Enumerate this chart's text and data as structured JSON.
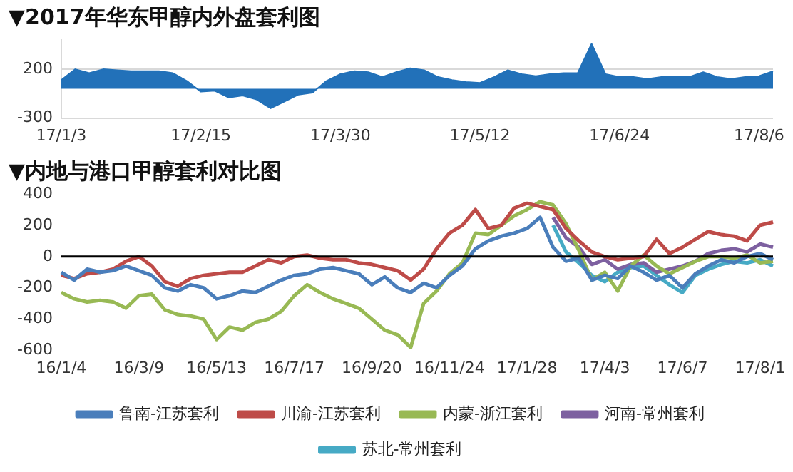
{
  "chart_data": [
    {
      "type": "area",
      "title": "▼2017年华东甲醇内外盘套利图",
      "categories": [
        "17/1/3",
        null,
        null,
        null,
        null,
        null,
        null,
        null,
        null,
        null,
        "17/2/15",
        null,
        null,
        null,
        null,
        null,
        null,
        null,
        null,
        null,
        "17/3/30",
        null,
        null,
        null,
        null,
        null,
        null,
        null,
        null,
        null,
        "17/5/12",
        null,
        null,
        null,
        null,
        null,
        null,
        null,
        null,
        null,
        "17/6/24",
        null,
        null,
        null,
        null,
        null,
        null,
        null,
        null,
        null,
        "17/8/6",
        null
      ],
      "series": [
        {
          "color": "#2271b9",
          "values": [
            90,
            200,
            160,
            200,
            190,
            180,
            180,
            180,
            160,
            80,
            -30,
            -20,
            -90,
            -70,
            -110,
            -200,
            -130,
            -60,
            -40,
            80,
            150,
            180,
            170,
            120,
            170,
            210,
            190,
            120,
            90,
            70,
            60,
            120,
            190,
            150,
            130,
            150,
            160,
            160,
            460,
            150,
            120,
            120,
            100,
            120,
            120,
            120,
            170,
            120,
            100,
            120,
            130,
            180
          ]
        }
      ],
      "ylim": [
        -300,
        500
      ],
      "yticks": [
        -300,
        200
      ],
      "grid": "y",
      "legend": false
    },
    {
      "type": "line",
      "title": "▼内地与港口甲醇套利对比图",
      "categories": [
        "16/1/4",
        null,
        null,
        null,
        null,
        null,
        "16/3/9",
        null,
        null,
        null,
        null,
        null,
        "16/5/13",
        null,
        null,
        null,
        null,
        null,
        "16/7/17",
        null,
        null,
        null,
        null,
        null,
        "16/9/20",
        null,
        null,
        null,
        null,
        null,
        "16/11/24",
        null,
        null,
        null,
        null,
        null,
        "17/1/28",
        null,
        null,
        null,
        null,
        null,
        "17/4/3",
        null,
        null,
        null,
        null,
        null,
        "17/6/7",
        null,
        null,
        null,
        null,
        null,
        "17/8/1",
        null
      ],
      "series": [
        {
          "name": "鲁南-江苏套利",
          "color": "#4a7ebb",
          "values": [
            -100,
            -150,
            -80,
            -100,
            -90,
            -60,
            -90,
            -120,
            -200,
            -220,
            -180,
            -200,
            -270,
            -250,
            -220,
            -230,
            -190,
            -150,
            -120,
            -110,
            -80,
            -70,
            -90,
            -110,
            -180,
            -130,
            -200,
            -230,
            -170,
            -200,
            -120,
            -60,
            50,
            100,
            130,
            150,
            180,
            250,
            60,
            -30,
            -10,
            -150,
            -120,
            -140,
            -60,
            -100,
            -150,
            -120,
            -200,
            -110,
            -60,
            -20,
            -40,
            0,
            20,
            -20
          ]
        },
        {
          "name": "川渝-江苏套利",
          "color": "#be4b48",
          "values": [
            -120,
            -140,
            -110,
            -100,
            -80,
            -30,
            0,
            -60,
            -160,
            -190,
            -140,
            -120,
            -110,
            -100,
            -100,
            -60,
            -20,
            -40,
            0,
            10,
            -10,
            -20,
            -20,
            -40,
            -50,
            -70,
            -90,
            -150,
            -80,
            50,
            150,
            200,
            300,
            180,
            200,
            310,
            340,
            320,
            300,
            180,
            100,
            30,
            0,
            -20,
            -10,
            0,
            110,
            20,
            60,
            110,
            160,
            140,
            130,
            100,
            200,
            220
          ]
        },
        {
          "name": "内蒙-浙江套利",
          "color": "#98b954",
          "values": [
            -230,
            -270,
            -290,
            -280,
            -290,
            -330,
            -250,
            -240,
            -340,
            -370,
            -380,
            -400,
            -530,
            -450,
            -470,
            -420,
            -400,
            -350,
            -250,
            -180,
            -230,
            -270,
            -300,
            -330,
            -400,
            -470,
            -500,
            -580,
            -300,
            -220,
            -110,
            -40,
            150,
            140,
            200,
            260,
            300,
            350,
            330,
            210,
            40,
            -150,
            -100,
            -220,
            -60,
            10,
            -60,
            -110,
            -70,
            -30,
            0,
            0,
            -10,
            10,
            -40,
            -30
          ]
        },
        {
          "name": "河南-常州套利",
          "color": "#7d60a0",
          "values": [
            null,
            null,
            null,
            null,
            null,
            null,
            null,
            null,
            null,
            null,
            null,
            null,
            null,
            null,
            null,
            null,
            null,
            null,
            null,
            null,
            null,
            null,
            null,
            null,
            null,
            null,
            null,
            null,
            null,
            null,
            null,
            null,
            null,
            null,
            null,
            null,
            null,
            null,
            250,
            120,
            60,
            -50,
            -20,
            -80,
            -50,
            -40,
            -100,
            -80,
            -60,
            -30,
            20,
            40,
            50,
            30,
            80,
            60
          ]
        },
        {
          "name": "苏北-常州套利",
          "color": "#46aac5",
          "values": [
            null,
            null,
            null,
            null,
            null,
            null,
            null,
            null,
            null,
            null,
            null,
            null,
            null,
            null,
            null,
            null,
            null,
            null,
            null,
            null,
            null,
            null,
            null,
            null,
            null,
            null,
            null,
            null,
            null,
            null,
            null,
            null,
            null,
            null,
            null,
            null,
            null,
            null,
            200,
            30,
            -40,
            -120,
            -160,
            -100,
            -70,
            -60,
            -120,
            -180,
            -230,
            -120,
            -80,
            -50,
            -30,
            -40,
            -20,
            -60
          ]
        }
      ],
      "ylim": [
        -600,
        400
      ],
      "yticks": [
        -600,
        -400,
        -200,
        0,
        200,
        400
      ],
      "grid": false,
      "legend": "bottom",
      "ref_lines": [
        {
          "axis": "y",
          "value": 0,
          "color": "#000000"
        }
      ]
    }
  ]
}
